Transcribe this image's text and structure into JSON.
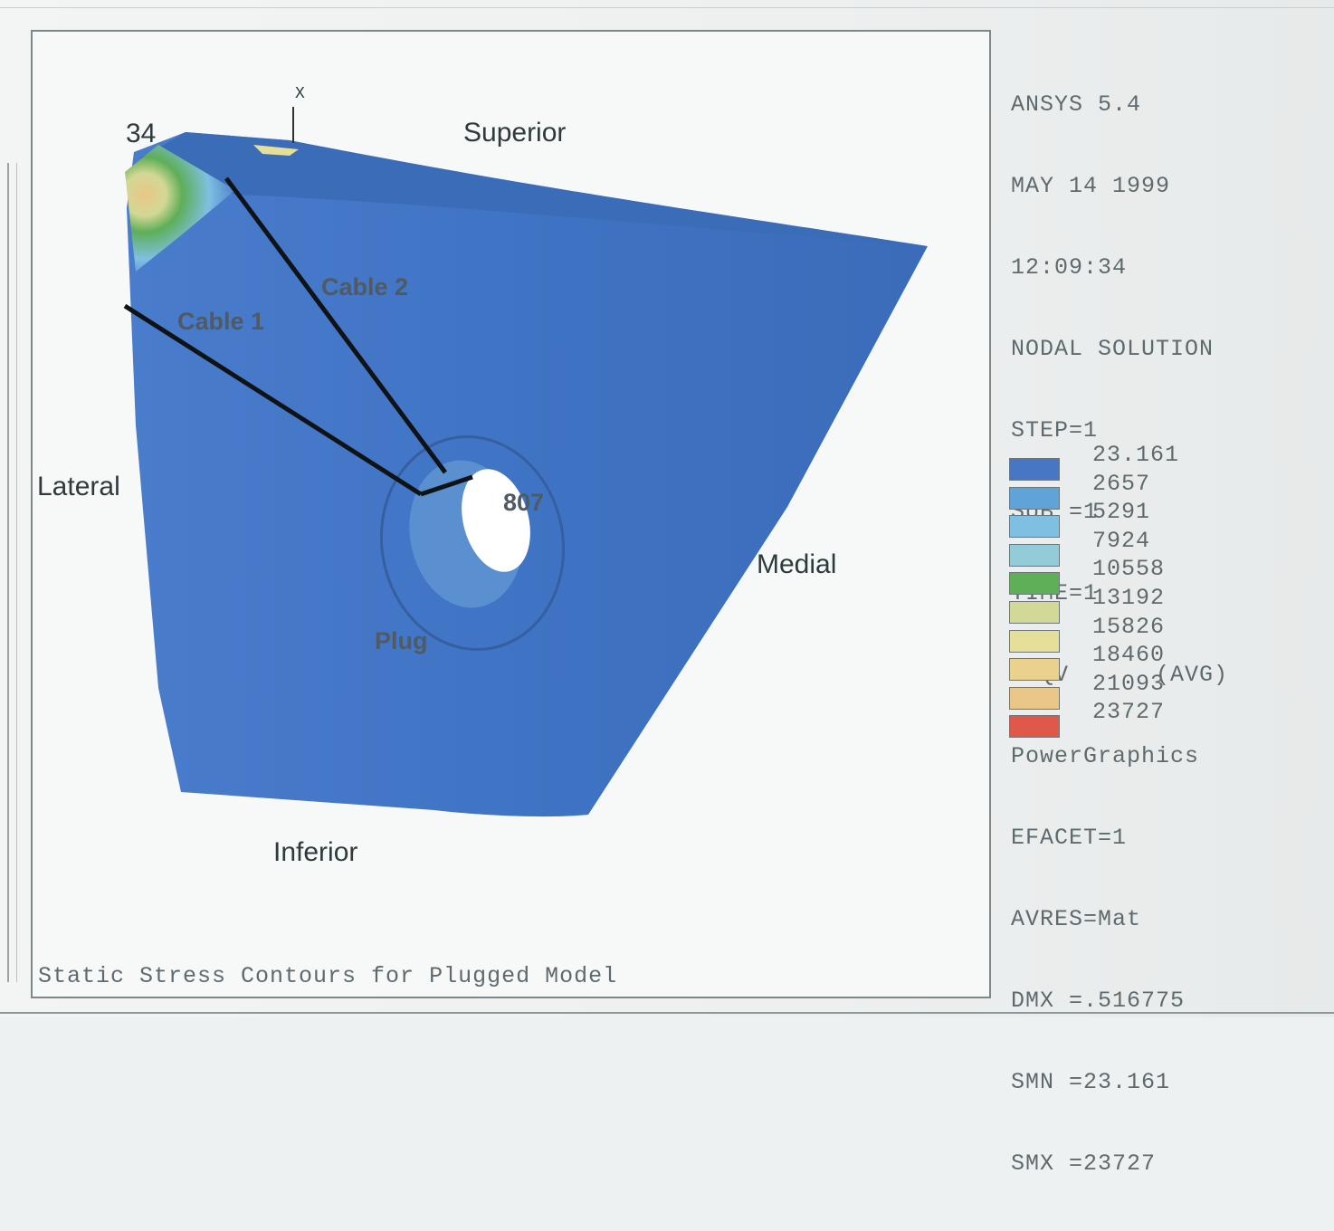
{
  "header_info": [
    "ANSYS 5.4",
    "MAY 14 1999",
    "12:09:34",
    "NODAL SOLUTION",
    "STEP=1",
    "SUB =1",
    "TIME=1",
    "SEQV      (AVG)",
    "PowerGraphics",
    "EFACET=1",
    "AVRES=Mat",
    "DMX =.516775",
    "SMN =23.161",
    "SMX =23727"
  ],
  "legend": [
    {
      "value": "23.161",
      "color": "#4676c4"
    },
    {
      "value": "2657",
      "color": "#5fa3d8"
    },
    {
      "value": "5291",
      "color": "#7fc0e2"
    },
    {
      "value": "7924",
      "color": "#93cbd8"
    },
    {
      "value": "10558",
      "color": "#5fae58"
    },
    {
      "value": "13192",
      "color": "#d2d895"
    },
    {
      "value": "15826",
      "color": "#e6df9a"
    },
    {
      "value": "18460",
      "color": "#ead28e"
    },
    {
      "value": "21093",
      "color": "#e9c788"
    },
    {
      "value": "23727",
      "color": "#e0584a"
    }
  ],
  "labels": {
    "superior": "Superior",
    "lateral": "Lateral",
    "medial": "Medial",
    "inferior": "Inferior",
    "cable1": "Cable 1",
    "cable2": "Cable 2",
    "plug": "Plug",
    "node34": "34",
    "node807": "807",
    "axis_x": "X"
  },
  "caption": "Static Stress Contours for Plugged Model"
}
